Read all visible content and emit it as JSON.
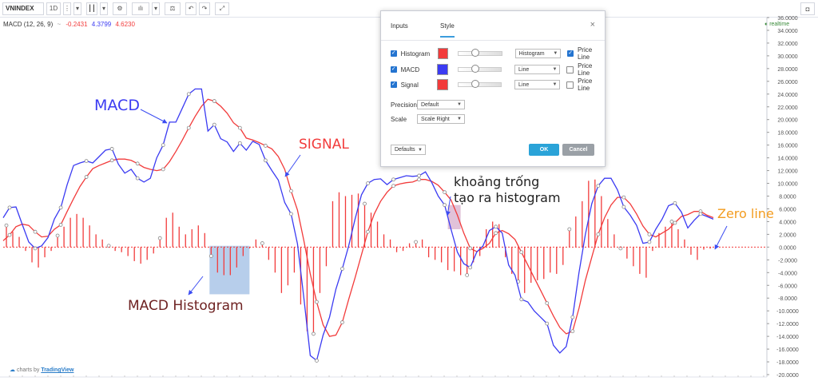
{
  "toolbar": {
    "symbol": "VNINDEX",
    "interval": "1D",
    "icons": [
      "more-icon",
      "chevron-down-icon",
      "candles-icon",
      "chevron-down-icon",
      "gear-icon",
      "indicators-icon",
      "chevron-down-icon",
      "compare-icon",
      "undo-icon",
      "redo-icon",
      "fullscreen-icon"
    ],
    "camera_icon": "camera-icon"
  },
  "legend": {
    "name": "MACD (12, 26, 9)",
    "menu_glyph": "~",
    "hist_value": "-0.2431",
    "macd_value": "4.3799",
    "signal_value": "4.6230"
  },
  "realtime_label": "realtime",
  "dialog": {
    "tabs": [
      "Inputs",
      "Style"
    ],
    "active_tab": "Style",
    "rows": [
      {
        "label": "Histogram",
        "color": "#f23b3b",
        "plot_style": "Histogram",
        "price_line": true
      },
      {
        "label": "MACD",
        "color": "#3b3bf2",
        "plot_style": "Line",
        "price_line": false
      },
      {
        "label": "Signal",
        "color": "#f23b3b",
        "plot_style": "Line",
        "price_line": false
      }
    ],
    "price_line_label": "Price Line",
    "precision_label": "Precision",
    "precision_value": "Default",
    "scale_label": "Scale",
    "scale_value": "Scale Right",
    "defaults_label": "Defaults",
    "ok_label": "OK",
    "cancel_label": "Cancel",
    "close_glyph": "×"
  },
  "annotations": {
    "macd": "MACD",
    "signal": "SIGNAL",
    "histogram": "MACD Histogram",
    "gap_line1": "khoảng trống",
    "gap_line2": "tạo ra histogram",
    "zero": "Zero line"
  },
  "footer": {
    "prefix": "charts by",
    "brand": "TradingView"
  },
  "chart_data": {
    "type": "line",
    "ylim": [
      -20,
      36
    ],
    "y_ticks": [
      "36.0000",
      "34.0000",
      "32.0000",
      "30.0000",
      "28.0000",
      "26.0000",
      "24.0000",
      "22.0000",
      "20.0000",
      "18.0000",
      "16.0000",
      "14.0000",
      "12.0000",
      "10.0000",
      "8.0000",
      "6.0000",
      "4.0000",
      "2.0000",
      "0.0000",
      "-2.0000",
      "-4.0000",
      "-6.0000",
      "-8.0000",
      "-10.0000",
      "-12.0000",
      "-14.0000",
      "-16.0000",
      "-18.0000",
      "-20.0000"
    ],
    "colors": {
      "macd": "#3b3bf2",
      "signal": "#f23b3b",
      "histogram": "#f23b3b",
      "zero": "#f23b3b"
    },
    "macd": [
      [
        0,
        4.6
      ],
      [
        8,
        6.2
      ],
      [
        16,
        6.3
      ],
      [
        24,
        3.5
      ],
      [
        32,
        0.8
      ],
      [
        40,
        -0.2
      ],
      [
        48,
        0.2
      ],
      [
        56,
        1.5
      ],
      [
        64,
        4.4
      ],
      [
        72,
        6.2
      ],
      [
        80,
        9.8
      ],
      [
        88,
        12.8
      ],
      [
        96,
        13.2
      ],
      [
        104,
        13.5
      ],
      [
        112,
        13.2
      ],
      [
        120,
        14.2
      ],
      [
        128,
        15.2
      ],
      [
        136,
        15.4
      ],
      [
        144,
        13.0
      ],
      [
        152,
        11.6
      ],
      [
        160,
        12.2
      ],
      [
        168,
        10.8
      ],
      [
        176,
        10.2
      ],
      [
        184,
        10.8
      ],
      [
        192,
        14.0
      ],
      [
        200,
        16.0
      ],
      [
        208,
        19.6
      ],
      [
        216,
        19.6
      ],
      [
        224,
        21.8
      ],
      [
        232,
        24.0
      ],
      [
        240,
        24.8
      ],
      [
        248,
        24.8
      ],
      [
        256,
        18.2
      ],
      [
        264,
        19.2
      ],
      [
        272,
        17.0
      ],
      [
        280,
        16.5
      ],
      [
        288,
        15.0
      ],
      [
        296,
        16.3
      ],
      [
        304,
        15.2
      ],
      [
        312,
        16.6
      ],
      [
        320,
        16.1
      ],
      [
        328,
        13.6
      ],
      [
        336,
        12.0
      ],
      [
        344,
        10.5
      ],
      [
        352,
        7.0
      ],
      [
        360,
        5.2
      ],
      [
        368,
        0.5
      ],
      [
        376,
        -8.0
      ],
      [
        384,
        -17.0
      ],
      [
        392,
        -17.8
      ],
      [
        400,
        -13.8
      ],
      [
        408,
        -11.0
      ],
      [
        416,
        -6.6
      ],
      [
        424,
        -3.4
      ],
      [
        432,
        0.2
      ],
      [
        440,
        4.4
      ],
      [
        448,
        8.2
      ],
      [
        456,
        10.0
      ],
      [
        464,
        10.6
      ],
      [
        472,
        10.7
      ],
      [
        480,
        9.8
      ],
      [
        488,
        10.6
      ],
      [
        496,
        10.9
      ],
      [
        504,
        11.2
      ],
      [
        512,
        11.1
      ],
      [
        520,
        11.2
      ],
      [
        528,
        11.8
      ],
      [
        536,
        10.1
      ],
      [
        544,
        8.0
      ],
      [
        552,
        6.6
      ],
      [
        560,
        2.8
      ],
      [
        568,
        -0.8
      ],
      [
        576,
        -2.6
      ],
      [
        584,
        -3.2
      ],
      [
        592,
        -0.8
      ],
      [
        600,
        0.2
      ],
      [
        608,
        2.6
      ],
      [
        616,
        3.2
      ],
      [
        624,
        2.2
      ],
      [
        632,
        -2.8
      ],
      [
        640,
        -4.4
      ],
      [
        648,
        -8.2
      ],
      [
        656,
        -8.6
      ],
      [
        664,
        -10.0
      ],
      [
        672,
        -11.0
      ],
      [
        680,
        -12.0
      ],
      [
        688,
        -15.4
      ],
      [
        696,
        -16.6
      ],
      [
        704,
        -15.6
      ],
      [
        712,
        -11.0
      ],
      [
        720,
        -4.0
      ],
      [
        728,
        2.0
      ],
      [
        736,
        6.8
      ],
      [
        744,
        9.6
      ],
      [
        752,
        10.8
      ],
      [
        760,
        10.8
      ],
      [
        768,
        9.0
      ],
      [
        776,
        6.3
      ],
      [
        784,
        5.0
      ],
      [
        792,
        3.4
      ],
      [
        800,
        0.6
      ],
      [
        808,
        0.8
      ],
      [
        816,
        2.8
      ],
      [
        824,
        4.4
      ],
      [
        832,
        6.5
      ],
      [
        840,
        6.9
      ],
      [
        848,
        5.5
      ],
      [
        856,
        3.0
      ],
      [
        864,
        4.2
      ],
      [
        872,
        5.2
      ],
      [
        880,
        4.8
      ],
      [
        888,
        4.38
      ]
    ],
    "signal": [
      [
        0,
        1.0
      ],
      [
        8,
        1.9
      ],
      [
        16,
        3.2
      ],
      [
        24,
        3.6
      ],
      [
        32,
        3.4
      ],
      [
        40,
        2.4
      ],
      [
        48,
        1.6
      ],
      [
        56,
        1.7
      ],
      [
        64,
        2.8
      ],
      [
        72,
        3.5
      ],
      [
        80,
        5.6
      ],
      [
        88,
        7.6
      ],
      [
        96,
        9.5
      ],
      [
        104,
        11.0
      ],
      [
        112,
        12.3
      ],
      [
        120,
        12.8
      ],
      [
        128,
        13.2
      ],
      [
        136,
        13.6
      ],
      [
        144,
        13.8
      ],
      [
        152,
        13.8
      ],
      [
        160,
        13.6
      ],
      [
        168,
        13.1
      ],
      [
        176,
        12.5
      ],
      [
        184,
        12.2
      ],
      [
        192,
        12.0
      ],
      [
        200,
        12.2
      ],
      [
        208,
        13.4
      ],
      [
        216,
        15.0
      ],
      [
        224,
        16.8
      ],
      [
        232,
        18.7
      ],
      [
        240,
        20.5
      ],
      [
        248,
        22.1
      ],
      [
        256,
        23.2
      ],
      [
        264,
        22.9
      ],
      [
        272,
        22.1
      ],
      [
        280,
        21.0
      ],
      [
        288,
        19.5
      ],
      [
        296,
        18.7
      ],
      [
        304,
        17.1
      ],
      [
        312,
        16.8
      ],
      [
        320,
        16.4
      ],
      [
        328,
        15.9
      ],
      [
        336,
        15.4
      ],
      [
        344,
        14.2
      ],
      [
        352,
        12.2
      ],
      [
        360,
        8.8
      ],
      [
        368,
        5.8
      ],
      [
        376,
        1.0
      ],
      [
        384,
        -4.2
      ],
      [
        392,
        -8.6
      ],
      [
        400,
        -12.2
      ],
      [
        408,
        -14.0
      ],
      [
        416,
        -13.8
      ],
      [
        424,
        -11.8
      ],
      [
        432,
        -8.2
      ],
      [
        440,
        -4.8
      ],
      [
        448,
        -1.2
      ],
      [
        456,
        2.4
      ],
      [
        464,
        5.2
      ],
      [
        472,
        7.2
      ],
      [
        480,
        8.6
      ],
      [
        488,
        9.6
      ],
      [
        496,
        9.9
      ],
      [
        504,
        10.1
      ],
      [
        512,
        10.2
      ],
      [
        520,
        10.6
      ],
      [
        528,
        10.6
      ],
      [
        536,
        10.3
      ],
      [
        544,
        9.7
      ],
      [
        552,
        8.6
      ],
      [
        560,
        7.4
      ],
      [
        568,
        5.0
      ],
      [
        576,
        2.2
      ],
      [
        584,
        -0.2
      ],
      [
        592,
        -0.7
      ],
      [
        600,
        -0.2
      ],
      [
        608,
        0.6
      ],
      [
        616,
        2.2
      ],
      [
        624,
        2.6
      ],
      [
        632,
        2.1
      ],
      [
        640,
        1.2
      ],
      [
        648,
        -0.8
      ],
      [
        656,
        -2.8
      ],
      [
        664,
        -4.8
      ],
      [
        672,
        -6.8
      ],
      [
        680,
        -8.8
      ],
      [
        688,
        -10.8
      ],
      [
        696,
        -12.6
      ],
      [
        704,
        -13.6
      ],
      [
        712,
        -13.2
      ],
      [
        720,
        -9.6
      ],
      [
        728,
        -5.2
      ],
      [
        736,
        -1.6
      ],
      [
        744,
        2.0
      ],
      [
        752,
        4.6
      ],
      [
        760,
        6.6
      ],
      [
        768,
        7.8
      ],
      [
        776,
        7.8
      ],
      [
        784,
        6.8
      ],
      [
        792,
        5.2
      ],
      [
        800,
        3.3
      ],
      [
        808,
        2.0
      ],
      [
        816,
        1.6
      ],
      [
        824,
        2.2
      ],
      [
        832,
        2.8
      ],
      [
        840,
        3.8
      ],
      [
        848,
        4.8
      ],
      [
        856,
        5.1
      ],
      [
        864,
        5.6
      ],
      [
        872,
        5.6
      ],
      [
        880,
        5.0
      ],
      [
        888,
        4.62
      ]
    ],
    "histogram": [
      [
        4,
        3.4
      ],
      [
        12,
        2.4
      ],
      [
        20,
        1.6
      ],
      [
        28,
        -0.6
      ],
      [
        36,
        -2.4
      ],
      [
        44,
        -3.2
      ],
      [
        52,
        -1.6
      ],
      [
        60,
        -0.6
      ],
      [
        68,
        1.8
      ],
      [
        76,
        3.2
      ],
      [
        84,
        4.6
      ],
      [
        92,
        5.2
      ],
      [
        100,
        4.6
      ],
      [
        108,
        3.4
      ],
      [
        116,
        2.0
      ],
      [
        124,
        1.2
      ],
      [
        132,
        0.2
      ],
      [
        140,
        -0.6
      ],
      [
        148,
        -0.8
      ],
      [
        156,
        -1.4
      ],
      [
        164,
        -2.2
      ],
      [
        172,
        -2.6
      ],
      [
        180,
        -2.0
      ],
      [
        188,
        -1.0
      ],
      [
        196,
        1.4
      ],
      [
        204,
        4.6
      ],
      [
        212,
        5.4
      ],
      [
        220,
        3.2
      ],
      [
        228,
        2.0
      ],
      [
        236,
        2.8
      ],
      [
        244,
        3.4
      ],
      [
        252,
        2.2
      ],
      [
        260,
        -1.4
      ],
      [
        268,
        -4.0
      ],
      [
        276,
        -4.4
      ],
      [
        284,
        -4.4
      ],
      [
        292,
        -3.2
      ],
      [
        300,
        -1.4
      ],
      [
        308,
        -0.2
      ],
      [
        316,
        1.2
      ],
      [
        324,
        0.6
      ],
      [
        332,
        -2.0
      ],
      [
        340,
        -4.0
      ],
      [
        348,
        -7.2
      ],
      [
        356,
        -6.0
      ],
      [
        364,
        -4.0
      ],
      [
        372,
        -9.0
      ],
      [
        380,
        -13.2
      ],
      [
        388,
        -13.6
      ],
      [
        396,
        -7.2
      ],
      [
        404,
        -3.0
      ],
      [
        412,
        7.2
      ],
      [
        420,
        8.6
      ],
      [
        428,
        8.0
      ],
      [
        436,
        8.2
      ],
      [
        444,
        8.4
      ],
      [
        452,
        6.8
      ],
      [
        460,
        5.4
      ],
      [
        468,
        4.0
      ],
      [
        476,
        2.0
      ],
      [
        484,
        1.2
      ],
      [
        492,
        -0.8
      ],
      [
        500,
        -0.6
      ],
      [
        508,
        0.6
      ],
      [
        516,
        0.8
      ],
      [
        524,
        1.2
      ],
      [
        532,
        -1.6
      ],
      [
        540,
        -2.0
      ],
      [
        548,
        -2.4
      ],
      [
        556,
        -3.6
      ],
      [
        564,
        -3.8
      ],
      [
        572,
        -4.4
      ],
      [
        580,
        -4.4
      ],
      [
        588,
        -2.4
      ],
      [
        596,
        -1.4
      ],
      [
        604,
        2.8
      ],
      [
        612,
        4.0
      ],
      [
        620,
        3.6
      ],
      [
        628,
        -1.6
      ],
      [
        636,
        -4.2
      ],
      [
        644,
        -5.4
      ],
      [
        652,
        -7.2
      ],
      [
        660,
        -5.6
      ],
      [
        668,
        -5.2
      ],
      [
        676,
        -5.0
      ],
      [
        684,
        -4.0
      ],
      [
        692,
        -4.2
      ],
      [
        700,
        -2.8
      ],
      [
        708,
        2.8
      ],
      [
        716,
        4.8
      ],
      [
        724,
        7.2
      ],
      [
        732,
        10.4
      ],
      [
        740,
        10.6
      ],
      [
        748,
        8.0
      ],
      [
        756,
        4.4
      ],
      [
        764,
        2.0
      ],
      [
        772,
        -0.2
      ],
      [
        780,
        -1.8
      ],
      [
        788,
        -3.0
      ],
      [
        796,
        -4.2
      ],
      [
        804,
        -4.8
      ],
      [
        812,
        -0.6
      ],
      [
        820,
        2.2
      ],
      [
        828,
        3.2
      ],
      [
        836,
        4.0
      ],
      [
        844,
        2.8
      ],
      [
        852,
        1.2
      ],
      [
        860,
        -1.2
      ],
      [
        868,
        -2.0
      ],
      [
        876,
        -0.4
      ],
      [
        884,
        -0.24
      ]
    ],
    "histogram_highlight_range": [
      258,
      308
    ],
    "gap_highlight_range": [
      556,
      572
    ]
  }
}
